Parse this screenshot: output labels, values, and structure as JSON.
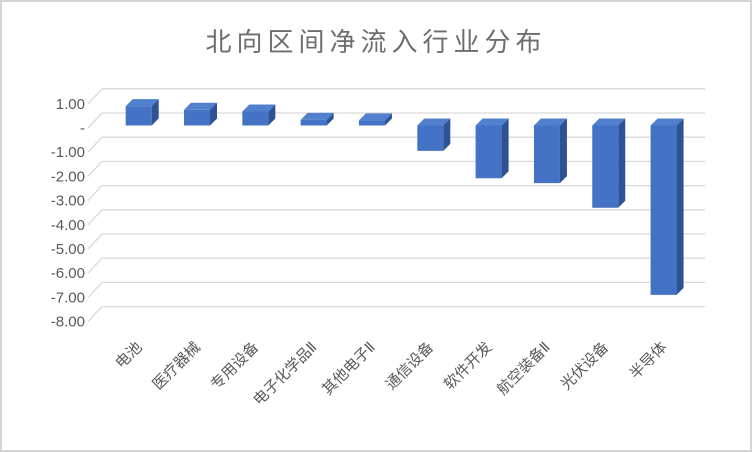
{
  "chart_data": {
    "type": "bar",
    "style": "3d-column",
    "title": "北向区间净流入行业分布",
    "series_name": "北向区间净流入",
    "categories": [
      "电池",
      "医疗器械",
      "专用设备",
      "电子化学品Ⅱ",
      "其他电子Ⅱ",
      "通信设备",
      "软件开发",
      "航空装备Ⅱ",
      "光伏设备",
      "半导体"
    ],
    "values": [
      0.8,
      0.65,
      0.58,
      0.23,
      0.21,
      -1.05,
      -2.18,
      -2.38,
      -3.4,
      -7.0
    ],
    "xlabel": "",
    "ylabel": "",
    "ylim": [
      -8,
      1
    ],
    "ytick_labels": [
      "1.00",
      "-",
      "-1.00",
      "-2.00",
      "-3.00",
      "-4.00",
      "-5.00",
      "-6.00",
      "-7.00",
      "-8.00"
    ],
    "ytick_values": [
      1,
      0,
      -1,
      -2,
      -3,
      -4,
      -5,
      -6,
      -7,
      -8
    ],
    "grid": true,
    "legend_position": "none",
    "colors": {
      "bar_front": "#4472C4",
      "bar_top": "#5180CE",
      "bar_side": "#2E5394",
      "gridline": "#D9D9D9",
      "axis_text": "#595959",
      "title_text": "#6E6E6E",
      "frame_border": "#D4D4D4",
      "background": "#FFFFFF"
    }
  }
}
